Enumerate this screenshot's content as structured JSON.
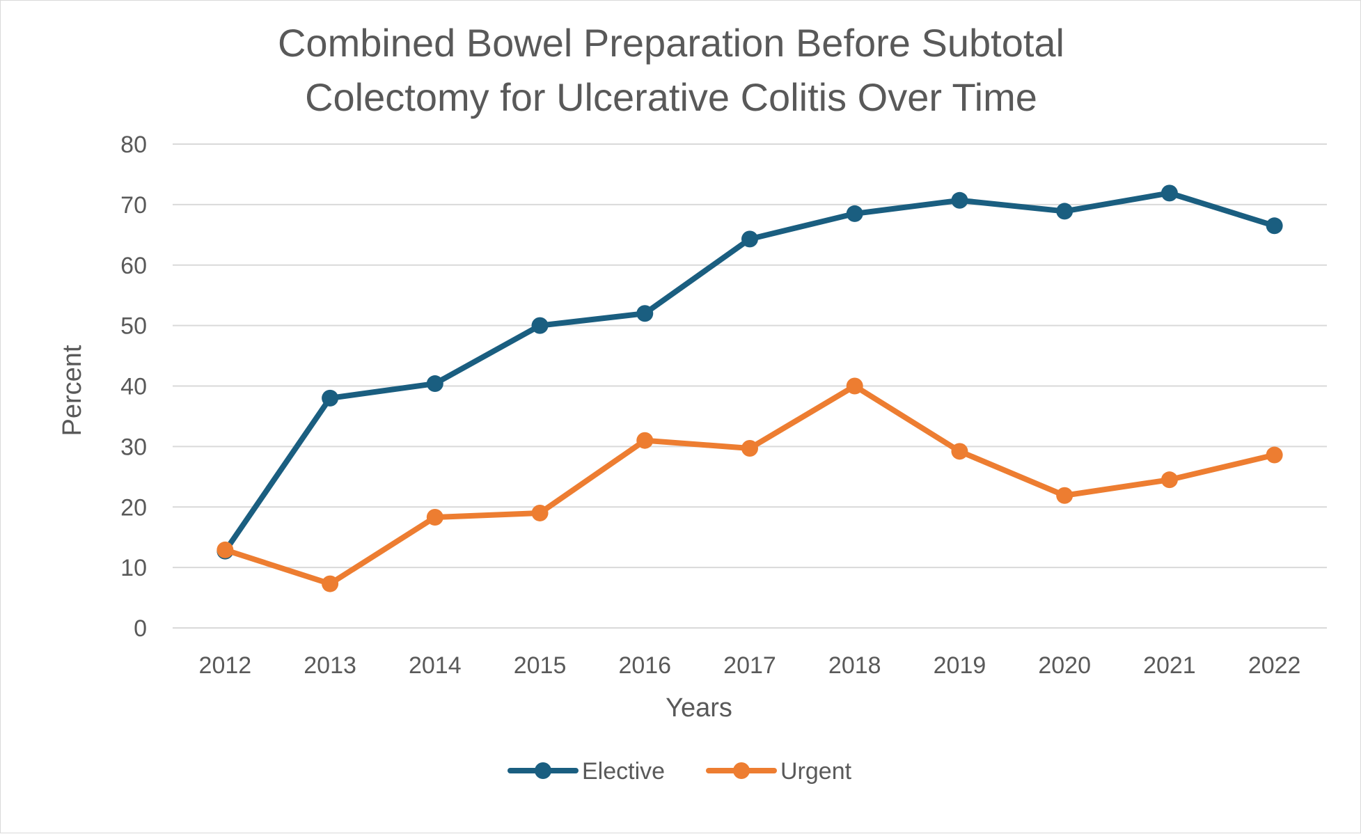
{
  "chart_data": {
    "type": "line",
    "title_lines": [
      "Combined Bowel Preparation Before Subtotal",
      "Colectomy for Ulcerative Colitis Over Time"
    ],
    "xlabel": "Years",
    "ylabel": "Percent",
    "categories": [
      "2012",
      "2013",
      "2014",
      "2015",
      "2016",
      "2017",
      "2018",
      "2019",
      "2020",
      "2021",
      "2022"
    ],
    "yticks": [
      "0",
      "10",
      "20",
      "30",
      "40",
      "50",
      "60",
      "70",
      "80"
    ],
    "ylim": [
      0,
      80
    ],
    "grid": true,
    "legend_position": "bottom",
    "series": [
      {
        "name": "Elective",
        "color": "#1a5e80",
        "values": [
          12.7,
          38,
          40.4,
          50,
          52,
          64.3,
          68.5,
          70.7,
          68.9,
          71.9,
          66.5
        ]
      },
      {
        "name": "Urgent",
        "color": "#ed7d31",
        "values": [
          12.9,
          7.3,
          18.3,
          19,
          31,
          29.7,
          40,
          29.2,
          21.9,
          24.5,
          28.6
        ]
      }
    ]
  }
}
